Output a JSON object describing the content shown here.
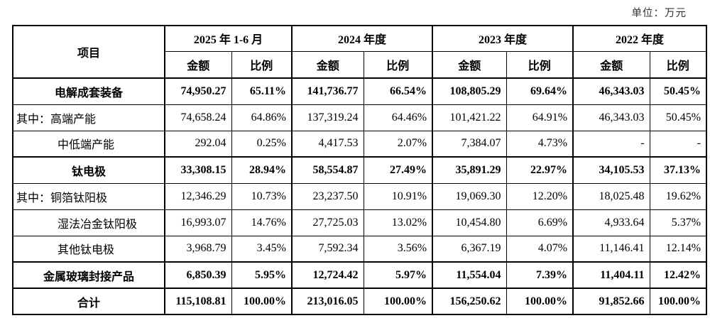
{
  "unit_label": "单位：万元",
  "table": {
    "item_header": "项目",
    "amount_header": "金额",
    "ratio_header": "比例",
    "periods": [
      "2025 年 1-6 月",
      "2024 年度",
      "2023 年度",
      "2022 年度"
    ],
    "rows": [
      {
        "label": "电解成套装备",
        "style": "category",
        "values": [
          "74,950.27",
          "65.11%",
          "141,736.77",
          "66.54%",
          "108,805.29",
          "69.64%",
          "46,343.03",
          "50.45%"
        ]
      },
      {
        "label": "其中：高端产能",
        "style": "sub-first",
        "values": [
          "74,658.24",
          "64.86%",
          "137,319.24",
          "64.46%",
          "101,421.22",
          "64.91%",
          "46,343.03",
          "50.45%"
        ]
      },
      {
        "label": "中低端产能",
        "style": "sub",
        "values": [
          "292.04",
          "0.25%",
          "4,417.53",
          "2.07%",
          "7,384.07",
          "4.73%",
          "-",
          "-"
        ]
      },
      {
        "label": "钛电极",
        "style": "category",
        "values": [
          "33,308.15",
          "28.94%",
          "58,554.87",
          "27.49%",
          "35,891.29",
          "22.97%",
          "34,105.53",
          "37.13%"
        ]
      },
      {
        "label": "其中：铜箔钛阳极",
        "style": "sub-first",
        "values": [
          "12,346.29",
          "10.73%",
          "23,237.50",
          "10.91%",
          "19,069.30",
          "12.20%",
          "18,025.48",
          "19.62%"
        ]
      },
      {
        "label": "湿法冶金钛阳极",
        "style": "sub",
        "values": [
          "16,993.07",
          "14.76%",
          "27,725.03",
          "13.02%",
          "10,454.80",
          "6.69%",
          "4,933.64",
          "5.37%"
        ]
      },
      {
        "label": "其他钛电极",
        "style": "sub",
        "values": [
          "3,968.79",
          "3.45%",
          "7,592.34",
          "3.56%",
          "6,367.19",
          "4.07%",
          "11,146.41",
          "12.14%"
        ]
      },
      {
        "label": "金属玻璃封接产品",
        "style": "category",
        "values": [
          "6,850.39",
          "5.95%",
          "12,724.42",
          "5.97%",
          "11,554.04",
          "7.39%",
          "11,404.11",
          "12.42%"
        ]
      },
      {
        "label": "合计",
        "style": "total",
        "values": [
          "115,108.81",
          "100.00%",
          "213,016.05",
          "100.00%",
          "156,250.62",
          "100.00%",
          "91,852.66",
          "100.00%"
        ]
      }
    ]
  }
}
